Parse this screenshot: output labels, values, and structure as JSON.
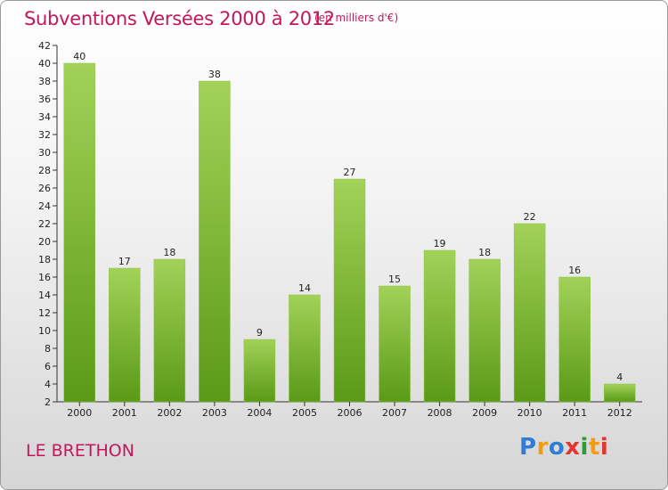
{
  "header": {
    "title": "Subventions Versées 2000 à 2012",
    "subtitle": "(en milliers d'€)"
  },
  "footer": {
    "place": "LE BRETHON",
    "logo_text": "Proxiti"
  },
  "colors": {
    "title": "#c2185b",
    "bar_light": "#9ccc4f",
    "bar_dark": "#5f9e1e",
    "axis": "#333333",
    "gridline": "#b5b5b5"
  },
  "chart_data": {
    "type": "bar",
    "title": "Subventions Versées 2000 à 2012",
    "subtitle": "(en milliers d'€)",
    "xlabel": "",
    "ylabel": "",
    "categories": [
      "2000",
      "2001",
      "2002",
      "2003",
      "2004",
      "2005",
      "2006",
      "2007",
      "2008",
      "2009",
      "2010",
      "2011",
      "2012"
    ],
    "values": [
      40,
      17,
      18,
      38,
      9,
      14,
      27,
      15,
      19,
      18,
      22,
      16,
      4
    ],
    "ylim": [
      2,
      42
    ],
    "yticks": [
      2,
      4,
      6,
      8,
      10,
      12,
      14,
      16,
      18,
      20,
      22,
      24,
      26,
      28,
      30,
      32,
      34,
      36,
      38,
      40,
      42
    ],
    "data_labels": true,
    "grid": false,
    "legend": "none"
  }
}
